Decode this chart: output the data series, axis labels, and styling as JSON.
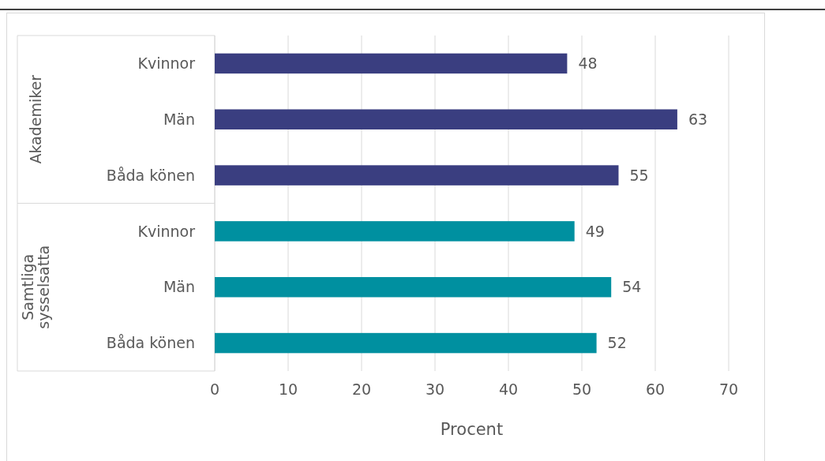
{
  "chart_data": {
    "type": "bar",
    "orientation": "horizontal",
    "xlabel": "Procent",
    "categories": [
      "Kvinnor",
      "Män",
      "Båda könen",
      "Kvinnor",
      "Män",
      "Båda könen"
    ],
    "values": [
      48,
      63,
      55,
      49,
      54,
      52
    ],
    "colors": [
      "#3a3e80",
      "#3a3e80",
      "#3a3e80",
      "#0090a0",
      "#0090a0",
      "#0090a0"
    ],
    "xlim": [
      0,
      70
    ],
    "xticks": [
      0,
      10,
      20,
      30,
      40,
      50,
      60,
      70
    ],
    "grid": "x",
    "data_labels": true,
    "annotations": [
      "Akademiker",
      "Samtliga sysselsatta"
    ]
  }
}
